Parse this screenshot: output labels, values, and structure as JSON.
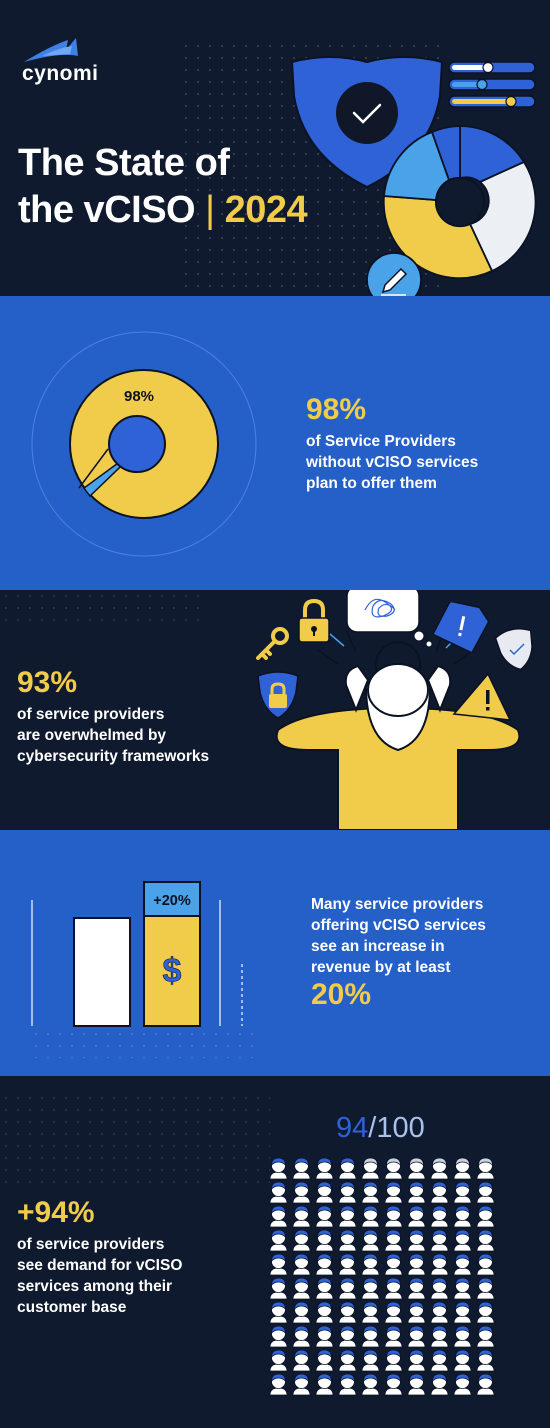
{
  "header": {
    "brand": "cynomi",
    "title_line1": "The State of",
    "title_line2": "the vCISO",
    "title_separator": "|",
    "year": "2024"
  },
  "stat1": {
    "chart_label": "98%",
    "value": "98%",
    "text_lines": [
      "of Service Providers",
      "without vCISO services",
      "plan to offer them"
    ]
  },
  "stat2": {
    "value": "93%",
    "text_lines": [
      "of service providers",
      "are overwhelmed by",
      "cybersecurity frameworks"
    ]
  },
  "stat3": {
    "bar_label": "+20%",
    "currency_symbol": "$",
    "text_lines": [
      "Many service providers",
      "offering vCISO services",
      "see an increase in",
      "revenue by at least"
    ],
    "value": "20%"
  },
  "stat4": {
    "value": "+94%",
    "text_lines": [
      "of service providers",
      "see demand for vCISO",
      "services among their",
      "customer base"
    ],
    "count": "94",
    "total": "/100",
    "highlighted_count": 94,
    "grid_total": 100
  },
  "colors": {
    "dark_bg": "#101a2e",
    "blue_bg": "#2560c9",
    "accent_yellow": "#f0cc4a",
    "light_blue": "#4aa3e8",
    "icon_blue": "#2f62d6"
  },
  "icons": [
    "shield-check-icon",
    "toggle-sliders-icon",
    "donut-chart-icon",
    "pencil-icon",
    "padlock-icon",
    "key-icon",
    "shield-lock-icon",
    "document-alert-icon",
    "warning-triangle-icon",
    "shield-icon",
    "confused-thought-bubble-icon",
    "dollar-icon",
    "person-icon"
  ]
}
